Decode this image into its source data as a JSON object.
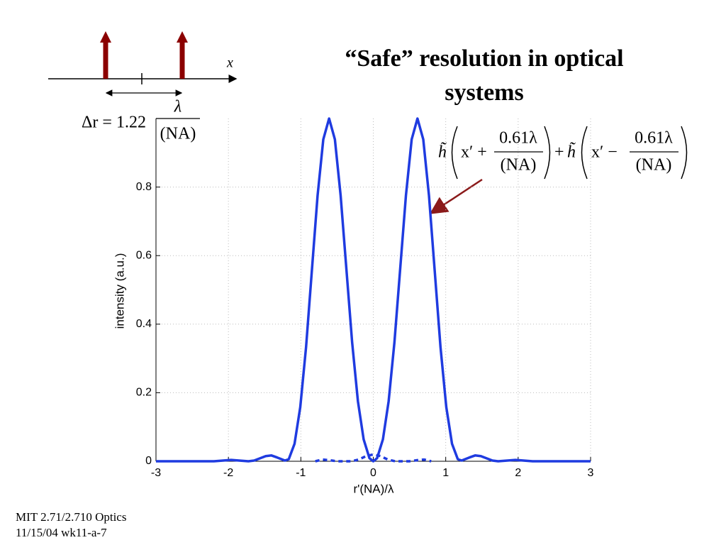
{
  "chart_data": {
    "type": "line",
    "title": [
      "“Safe” resolution in optical",
      "systems"
    ],
    "xlabel": "r'(NA)/λ",
    "ylabel": "intensity (a.u.)",
    "xlim": [
      -3,
      3
    ],
    "xticks": [
      -3,
      -2,
      -1,
      0,
      1,
      2,
      3
    ],
    "ylim": [
      0,
      1
    ],
    "yticks": [
      0,
      0.2,
      0.4,
      0.6,
      0.8
    ],
    "grid": true,
    "series": [
      {
        "color": "#1f3be0",
        "style": "solid",
        "x": [
          -3,
          -2.2,
          -1.963,
          -1.724,
          -1.645,
          -1.485,
          -1.406,
          -1.326,
          -1.22,
          -1.167,
          -1.087,
          -1.008,
          -0.928,
          -0.849,
          -0.769,
          -0.69,
          -0.61,
          -0.53,
          -0.451,
          -0.371,
          -0.292,
          -0.212,
          -0.133,
          -0.053,
          0,
          0.053,
          0.133,
          0.212,
          0.292,
          0.371,
          0.451,
          0.53,
          0.61,
          0.69,
          0.769,
          0.849,
          0.928,
          1.008,
          1.087,
          1.167,
          1.22,
          1.326,
          1.406,
          1.485,
          1.645,
          1.724,
          1.963,
          2.2,
          3
        ],
        "values": [
          0,
          0,
          0.004,
          0,
          0.002,
          0.015,
          0.017,
          0.011,
          0.002,
          0.006,
          0.051,
          0.158,
          0.333,
          0.553,
          0.775,
          0.939,
          1.0,
          0.939,
          0.776,
          0.56,
          0.347,
          0.175,
          0.064,
          0.009,
          0,
          0.009,
          0.064,
          0.175,
          0.347,
          0.56,
          0.776,
          0.939,
          1.0,
          0.939,
          0.775,
          0.553,
          0.333,
          0.158,
          0.051,
          0.006,
          0.002,
          0.011,
          0.017,
          0.015,
          0.002,
          0,
          0.004,
          0,
          0
        ]
      },
      {
        "color": "#1f3be0",
        "style": "dashed",
        "x": [
          -0.8,
          -0.7,
          -0.6,
          -0.5,
          -0.3,
          -0.2,
          -0.1,
          0,
          0.1,
          0.2,
          0.3,
          0.5,
          0.6,
          0.7,
          0.8
        ],
        "values": [
          0,
          0.005,
          0.003,
          0,
          0,
          0.005,
          0.015,
          0.02,
          0.015,
          0.005,
          0,
          0,
          0.003,
          0.005,
          0
        ]
      }
    ],
    "annotation": {
      "h": "h̃",
      "xp_plus": "x′ +",
      "num": "0.61λ",
      "den": "(NA)",
      "plus": "+",
      "xp_minus": "x′ −"
    }
  },
  "inset": {
    "axis": "x",
    "delta": "Δr = 1.22",
    "lambda": "λ",
    "na": "(NA)"
  },
  "footer": [
    "MIT 2.71/2.710 Optics",
    "11/15/04 wk11-a-7"
  ]
}
